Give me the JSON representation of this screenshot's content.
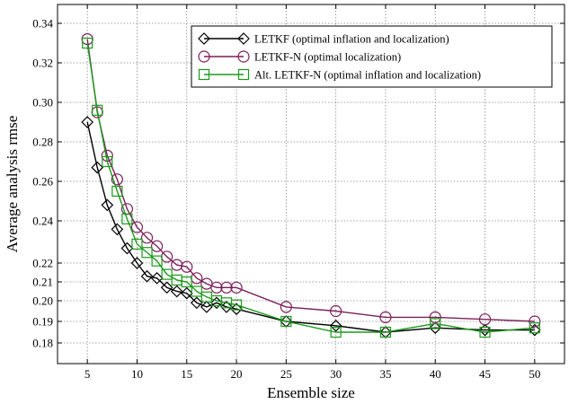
{
  "chart_data": {
    "type": "line",
    "xlabel": "Ensemble size",
    "ylabel": "Average analysis rmse",
    "xlim": [
      2,
      53
    ],
    "ylim": [
      0.17,
      0.345
    ],
    "grid": true,
    "legend_position": "top-right",
    "x_ticks": [
      5,
      10,
      15,
      20,
      25,
      30,
      35,
      40,
      45,
      50
    ],
    "x_tick_labels": [
      "5",
      "10",
      "15",
      "20",
      "25",
      "30",
      "35",
      "40",
      "45",
      "50"
    ],
    "y_ticks": [
      0.18,
      0.19,
      0.2,
      0.21,
      0.22,
      0.24,
      0.26,
      0.28,
      0.3,
      0.32,
      0.34
    ],
    "y_tick_labels": [
      "0.18",
      "0.19",
      "0.20",
      "0.21",
      "0.22",
      "0.24",
      "0.26",
      "0.28",
      "0.30",
      "0.32",
      "0.34"
    ],
    "series": [
      {
        "name": "LETKF (optimal inflation and localization)",
        "color": "#000000",
        "marker": "diamond",
        "x": [
          5,
          6,
          7,
          8,
          9,
          10,
          11,
          12,
          13,
          14,
          15,
          16,
          17,
          18,
          19,
          20,
          25,
          30,
          35,
          40,
          45,
          50
        ],
        "y": [
          0.29,
          0.267,
          0.248,
          0.236,
          0.227,
          0.22,
          0.213,
          0.212,
          0.207,
          0.205,
          0.204,
          0.199,
          0.197,
          0.199,
          0.197,
          0.196,
          0.19,
          0.188,
          0.185,
          0.187,
          0.186,
          0.186
        ]
      },
      {
        "name": "LETKF-N (optimal localization)",
        "color": "#7b1f5a",
        "marker": "circle",
        "x": [
          5,
          6,
          7,
          8,
          9,
          10,
          11,
          12,
          13,
          14,
          15,
          16,
          17,
          18,
          19,
          20,
          25,
          30,
          35,
          40,
          45,
          50
        ],
        "y": [
          0.332,
          0.295,
          0.273,
          0.261,
          0.246,
          0.237,
          0.232,
          0.228,
          0.223,
          0.219,
          0.218,
          0.212,
          0.209,
          0.207,
          0.207,
          0.207,
          0.197,
          0.195,
          0.192,
          0.192,
          0.191,
          0.19
        ]
      },
      {
        "name": "Alt. LETKF-N (optimal inflation and localization)",
        "color": "#1a9a1a",
        "marker": "square",
        "x": [
          5,
          6,
          7,
          8,
          9,
          10,
          11,
          12,
          13,
          14,
          15,
          16,
          17,
          18,
          19,
          20,
          25,
          30,
          35,
          40,
          45,
          50
        ],
        "y": [
          0.33,
          0.296,
          0.27,
          0.255,
          0.241,
          0.229,
          0.225,
          0.221,
          0.214,
          0.211,
          0.21,
          0.205,
          0.202,
          0.2,
          0.199,
          0.198,
          0.19,
          0.185,
          0.185,
          0.189,
          0.185,
          0.187
        ]
      }
    ]
  }
}
